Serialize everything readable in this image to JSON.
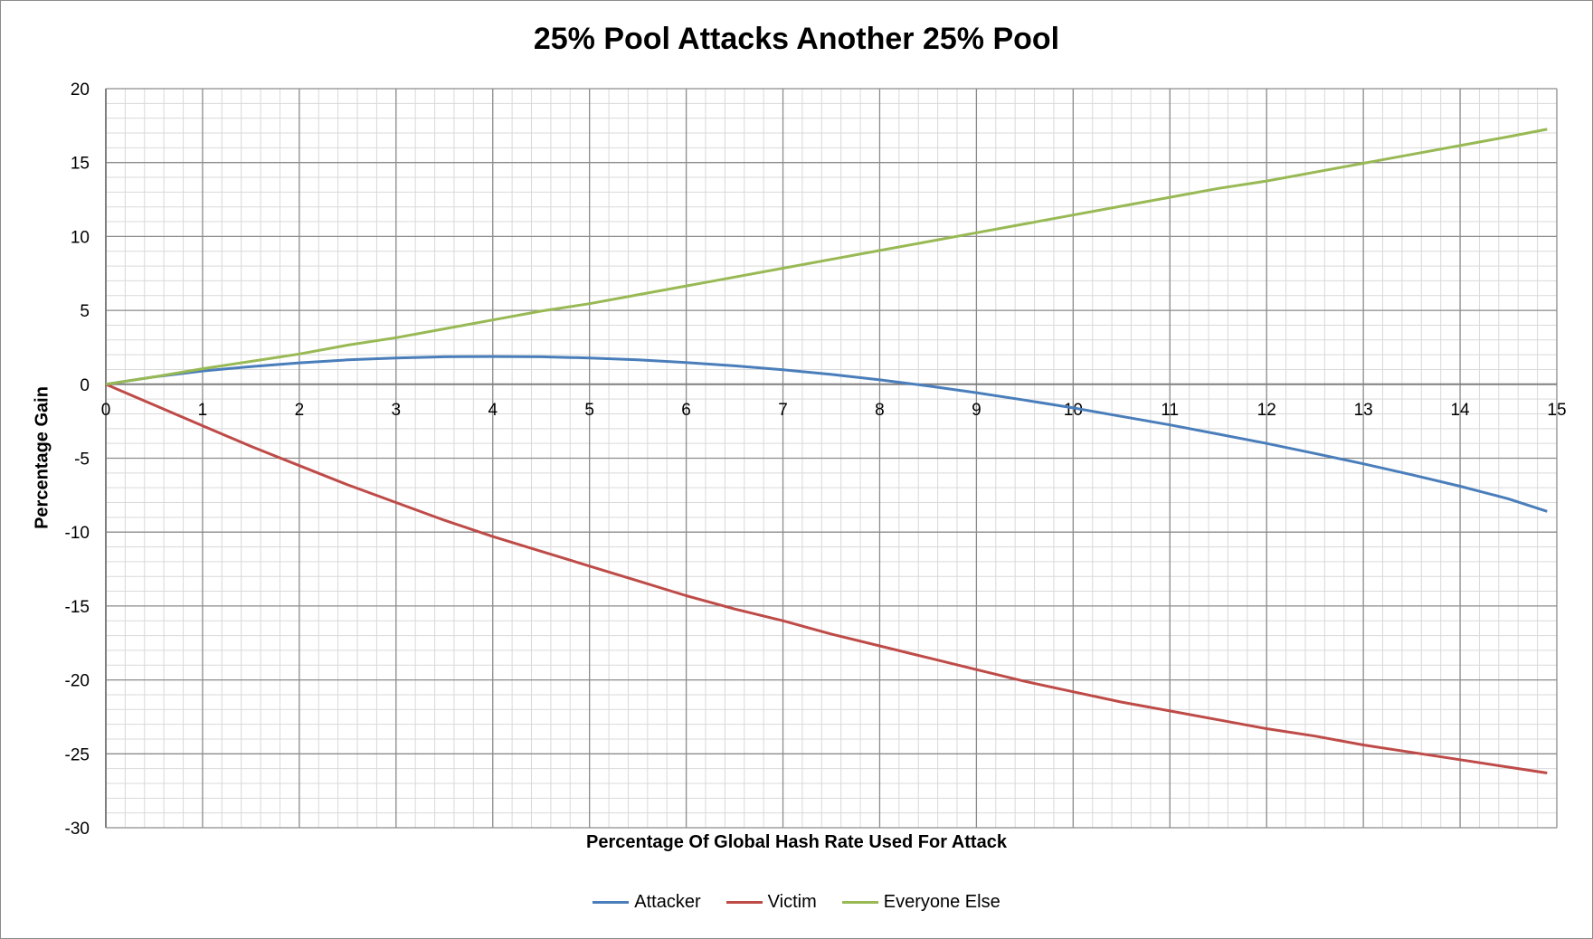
{
  "chart_data": {
    "type": "line",
    "title": "25% Pool Attacks Another 25% Pool",
    "xlabel": "Percentage Of Global Hash Rate Used For Attack",
    "ylabel": "Percentage Gain",
    "xlim": [
      0,
      15
    ],
    "ylim": [
      -30,
      20
    ],
    "x_ticks": [
      0,
      1,
      2,
      3,
      4,
      5,
      6,
      7,
      8,
      9,
      10,
      11,
      12,
      13,
      14,
      15
    ],
    "y_ticks": [
      20,
      15,
      10,
      5,
      0,
      -5,
      -10,
      -15,
      -20,
      -25,
      -30
    ],
    "grid": true,
    "minor_grid": true,
    "legend_position": "bottom",
    "x": [
      0,
      0.5,
      1,
      1.5,
      2,
      2.5,
      3,
      3.5,
      4,
      4.5,
      5,
      5.5,
      6,
      6.5,
      7,
      7.5,
      8,
      8.5,
      9,
      9.5,
      10,
      10.5,
      11,
      11.5,
      12,
      12.5,
      13,
      13.5,
      14,
      14.5,
      14.9
    ],
    "series": [
      {
        "name": "Attacker",
        "color": "#4a7ebb",
        "values": [
          0,
          0.5,
          0.9,
          1.2,
          1.45,
          1.65,
          1.78,
          1.86,
          1.88,
          1.86,
          1.78,
          1.65,
          1.47,
          1.25,
          0.98,
          0.67,
          0.3,
          -0.11,
          -0.57,
          -1.07,
          -1.6,
          -2.17,
          -2.75,
          -3.37,
          -4.0,
          -4.68,
          -5.38,
          -6.12,
          -6.9,
          -7.75,
          -8.6
        ]
      },
      {
        "name": "Victim",
        "color": "#be4b48",
        "values": [
          0,
          -1.4,
          -2.8,
          -4.2,
          -5.5,
          -6.8,
          -8.0,
          -9.2,
          -10.3,
          -11.3,
          -12.3,
          -13.3,
          -14.3,
          -15.2,
          -16.0,
          -16.9,
          -17.7,
          -18.5,
          -19.3,
          -20.1,
          -20.8,
          -21.5,
          -22.1,
          -22.7,
          -23.3,
          -23.8,
          -24.4,
          -24.9,
          -25.4,
          -25.9,
          -26.3
        ]
      },
      {
        "name": "Everyone Else",
        "color": "#98b954",
        "values": [
          0,
          0.5,
          1.05,
          1.55,
          2.05,
          2.65,
          3.15,
          3.75,
          4.35,
          4.95,
          5.45,
          6.05,
          6.65,
          7.25,
          7.85,
          8.45,
          9.05,
          9.65,
          10.25,
          10.85,
          11.45,
          12.05,
          12.65,
          13.25,
          13.75,
          14.35,
          14.95,
          15.55,
          16.15,
          16.75,
          17.25
        ]
      }
    ]
  }
}
